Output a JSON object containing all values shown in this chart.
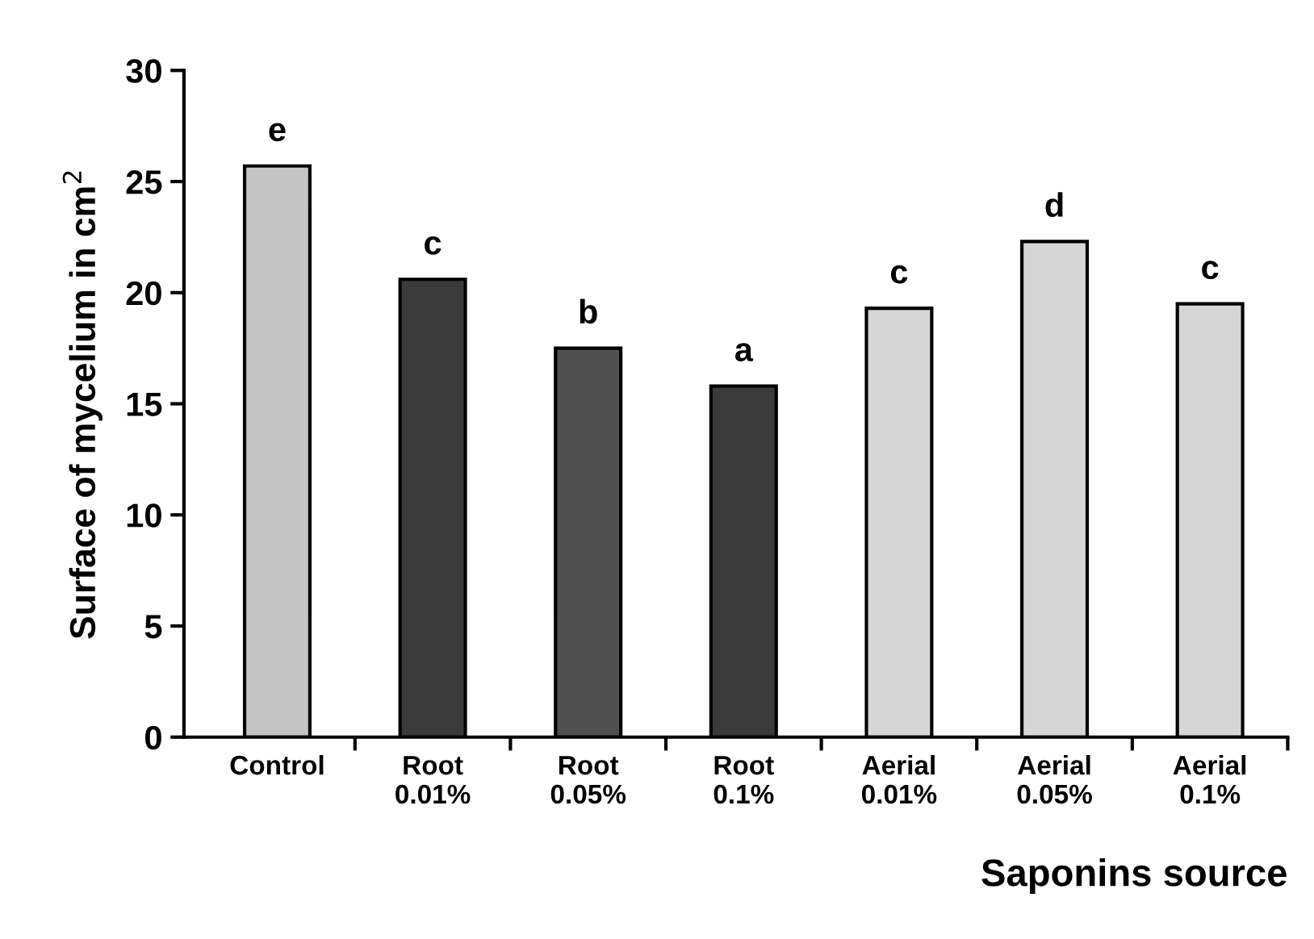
{
  "chart_data": {
    "type": "bar",
    "categories": [
      "Control",
      "Root\n0.01%",
      "Root\n0.05%",
      "Root\n0.1%",
      "Aerial\n0.01%",
      "Aerial\n0.05%",
      "Aerial\n0.1%"
    ],
    "values": [
      25.7,
      20.6,
      17.5,
      15.8,
      19.3,
      22.3,
      19.5
    ],
    "colors": [
      "#c4c4c4",
      "#3a3a3a",
      "#505050",
      "#3a3a3a",
      "#d6d6d6",
      "#d6d6d6",
      "#d6d6d6"
    ],
    "value_labels": [
      "e",
      "c",
      "b",
      "a",
      "c",
      "d",
      "c"
    ],
    "xlabel": "Saponins source",
    "ylabel": "Surface of mycelium in cm$^{2}$",
    "ylim": [
      0,
      30
    ],
    "yticks": [
      0,
      5,
      10,
      15,
      20,
      25,
      30
    ],
    "grid": false,
    "legend": false
  }
}
